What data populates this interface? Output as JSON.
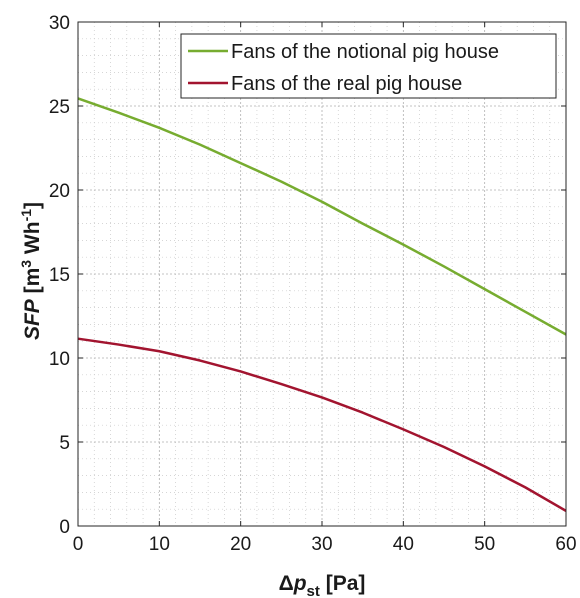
{
  "chart_data": {
    "type": "line",
    "x": [
      0,
      5,
      10,
      15,
      20,
      25,
      30,
      35,
      40,
      45,
      50,
      55,
      60
    ],
    "series": [
      {
        "name": "Fans of the notional pig house",
        "color": "#77ac30",
        "values": [
          25.45,
          24.6,
          23.7,
          22.7,
          21.6,
          20.5,
          19.3,
          18.0,
          16.75,
          15.45,
          14.1,
          12.75,
          11.4
        ]
      },
      {
        "name": "Fans of the real pig house",
        "color": "#a2142f",
        "values": [
          11.15,
          10.8,
          10.4,
          9.85,
          9.2,
          8.45,
          7.65,
          6.75,
          5.75,
          4.7,
          3.55,
          2.3,
          0.9
        ]
      }
    ],
    "xlim": [
      0,
      60
    ],
    "ylim": [
      0,
      30
    ],
    "xticks": [
      "0",
      "10",
      "20",
      "30",
      "40",
      "50",
      "60"
    ],
    "yticks": [
      "0",
      "5",
      "10",
      "15",
      "20",
      "25",
      "30"
    ],
    "xlabel": {
      "delta": "Δ",
      "p": "p",
      "sub": "st",
      "unit": " [Pa]"
    },
    "ylabel": {
      "sfp": "SFP",
      "unit_a": " [m",
      "sup3": "3",
      "unit_b": " Wh",
      "supm1": "-1",
      "unit_c": "]"
    },
    "grid": true,
    "minor_grid": true,
    "legend_position": "top-right"
  }
}
